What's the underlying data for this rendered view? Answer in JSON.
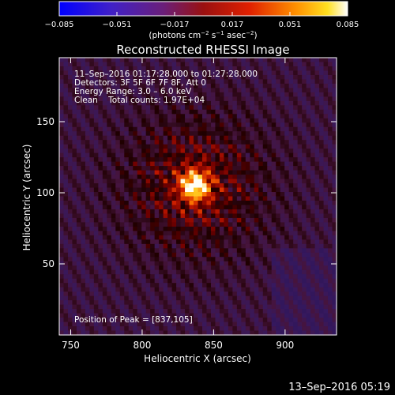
{
  "colorbar": {
    "ticks": [
      -0.085,
      -0.051,
      -0.017,
      0.017,
      0.051,
      0.085
    ],
    "tick_labels": [
      "−0.085",
      "−0.051",
      "−0.017",
      "0.017",
      "0.051",
      "0.085"
    ],
    "units_prefix": "(photons cm",
    "units_exp1": "−2",
    "units_mid": " s",
    "units_exp2": "−1",
    "units_suffix": " asec",
    "units_exp3": "−2",
    "units_close": ")"
  },
  "annotation": {
    "time_range": "11–Sep–2016 01:17:28.000 to 01:27:28.000",
    "detectors": "Detectors: 3F 5F 6F 7F 8F, Att 0",
    "energy": "Energy Range: 3.0 – 6.0 keV",
    "clean": "Clean    Total counts: 1.97E+04",
    "peak": "Position of Peak = [837,105]"
  },
  "footer": {
    "timestamp": "13–Sep–2016 05:19"
  },
  "chart_data": {
    "type": "heatmap",
    "title": "Reconstructed RHESSI Image",
    "xlabel": "Heliocentric X (arcsec)",
    "ylabel": "Heliocentric Y (arcsec)",
    "xlim": [
      742,
      936
    ],
    "ylim": [
      0,
      195
    ],
    "xticks": [
      750,
      800,
      850,
      900
    ],
    "yticks": [
      50,
      100,
      150
    ],
    "colormap": "IDL red temperature (black-red-orange-yellow-white), negative values blue-purple",
    "value_range": [
      -0.085,
      0.085
    ],
    "peak": {
      "x": 837,
      "y": 105,
      "value": 0.085
    },
    "source_halo_sigma_arcsec": 35,
    "grid": false
  }
}
